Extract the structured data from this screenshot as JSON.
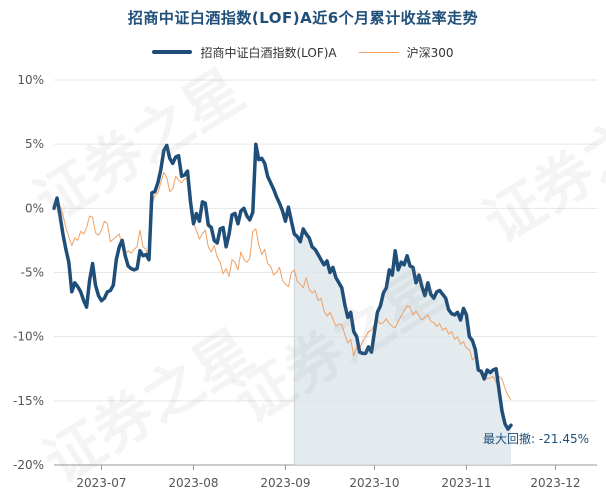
{
  "title": "招商中证白酒指数(LOF)A近6个月累计收益率走势",
  "colors": {
    "fund": "#1f4e79",
    "index": "#f0a062",
    "area": "#dbe4ea",
    "grid": "#e6e6e6",
    "axis_text": "#555555",
    "annotation": "#1f4e79"
  },
  "watermark_text": "证券之星",
  "chart_data": {
    "type": "line",
    "title": "招商中证白酒指数(LOF)A近6个月累计收益率走势",
    "xlabel": "",
    "ylabel": "",
    "ylim": [
      -20,
      10
    ],
    "y_ticks": [
      "10%",
      "5%",
      "0%",
      "-5%",
      "-10%",
      "-15%",
      "-20%"
    ],
    "y_tick_values": [
      10,
      5,
      0,
      -5,
      -10,
      -15,
      -20
    ],
    "x_ticks": [
      "2023-07",
      "2023-08",
      "2023-09",
      "2023-10",
      "2023-11",
      "2023-12"
    ],
    "x_tick_days": [
      16,
      47,
      78,
      108,
      139,
      169
    ],
    "x_range_days": [
      0,
      183
    ],
    "grid": "horizontal",
    "legend_position": "top-center",
    "annotation": "最大回撤: -21.45%",
    "drawdown_start_day": 81,
    "series": [
      {
        "name": "招商中证白酒指数(LOF)A",
        "style": "thick",
        "points": [
          [
            0,
            0
          ],
          [
            1,
            0.8
          ],
          [
            2,
            -0.5
          ],
          [
            3,
            -2
          ],
          [
            4,
            -3.2
          ],
          [
            5,
            -4.2
          ],
          [
            6,
            -6.5
          ],
          [
            7,
            -5.8
          ],
          [
            8,
            -6.1
          ],
          [
            9,
            -6.5
          ],
          [
            10,
            -7.2
          ],
          [
            11,
            -7.7
          ],
          [
            12,
            -5.6
          ],
          [
            13,
            -4.3
          ],
          [
            14,
            -6.0
          ],
          [
            15,
            -6.8
          ],
          [
            16,
            -7.2
          ],
          [
            17,
            -7.0
          ],
          [
            18,
            -6.5
          ],
          [
            19,
            -6.4
          ],
          [
            20,
            -6.0
          ],
          [
            21,
            -4.0
          ],
          [
            22,
            -3.0
          ],
          [
            23,
            -2.5
          ],
          [
            24,
            -3.7
          ],
          [
            25,
            -4.5
          ],
          [
            26,
            -4.7
          ],
          [
            27,
            -4.8
          ],
          [
            28,
            -4.7
          ],
          [
            29,
            -3.3
          ],
          [
            30,
            -3.7
          ],
          [
            31,
            -3.6
          ],
          [
            32,
            -4.0
          ],
          [
            33,
            1.2
          ],
          [
            34,
            1.3
          ],
          [
            35,
            2.0
          ],
          [
            36,
            3.0
          ],
          [
            37,
            4.5
          ],
          [
            38,
            4.9
          ],
          [
            39,
            3.9
          ],
          [
            40,
            3.5
          ],
          [
            41,
            4.0
          ],
          [
            42,
            4.1
          ],
          [
            43,
            2.5
          ],
          [
            44,
            2.6
          ],
          [
            45,
            2.9
          ],
          [
            46,
            0.5
          ],
          [
            47,
            -1.2
          ],
          [
            48,
            -0.4
          ],
          [
            49,
            -1.0
          ],
          [
            50,
            0.5
          ],
          [
            51,
            0.4
          ],
          [
            52,
            -1.3
          ],
          [
            53,
            -1.5
          ],
          [
            54,
            -2.5
          ],
          [
            55,
            -2.7
          ],
          [
            56,
            -1.6
          ],
          [
            57,
            -1.5
          ],
          [
            58,
            -3.0
          ],
          [
            59,
            -2.0
          ],
          [
            60,
            -0.5
          ],
          [
            61,
            -0.4
          ],
          [
            62,
            -1.2
          ],
          [
            63,
            -0.2
          ],
          [
            64,
            0.0
          ],
          [
            65,
            -0.6
          ],
          [
            66,
            -0.9
          ],
          [
            67,
            -0.3
          ],
          [
            68,
            5.0
          ],
          [
            69,
            3.8
          ],
          [
            70,
            3.9
          ],
          [
            71,
            3.5
          ],
          [
            72,
            2.5
          ],
          [
            73,
            2.0
          ],
          [
            74,
            1.5
          ],
          [
            75,
            0.9
          ],
          [
            76,
            0.4
          ],
          [
            77,
            -0.2
          ],
          [
            78,
            -1.0
          ],
          [
            79,
            0.1
          ],
          [
            80,
            -1.0
          ],
          [
            81,
            -2.0
          ],
          [
            82,
            -2.2
          ],
          [
            83,
            -2.6
          ],
          [
            84,
            -1.6
          ],
          [
            85,
            -2.0
          ],
          [
            86,
            -2.3
          ],
          [
            87,
            -3.0
          ],
          [
            88,
            -3.2
          ],
          [
            89,
            -3.6
          ],
          [
            90,
            -4.0
          ],
          [
            91,
            -4.4
          ],
          [
            92,
            -4.1
          ],
          [
            93,
            -5.0
          ],
          [
            94,
            -4.6
          ],
          [
            95,
            -5.4
          ],
          [
            96,
            -5.8
          ],
          [
            97,
            -6.2
          ],
          [
            98,
            -7.5
          ],
          [
            99,
            -8.5
          ],
          [
            100,
            -8.1
          ],
          [
            101,
            -9.6
          ],
          [
            102,
            -10.0
          ],
          [
            103,
            -11.2
          ],
          [
            104,
            -11.3
          ],
          [
            105,
            -11.3
          ],
          [
            106,
            -10.8
          ],
          [
            107,
            -11.2
          ],
          [
            108,
            -9.6
          ],
          [
            109,
            -8.1
          ],
          [
            110,
            -7.6
          ],
          [
            111,
            -6.6
          ],
          [
            112,
            -6.2
          ],
          [
            113,
            -4.8
          ],
          [
            114,
            -5.2
          ],
          [
            115,
            -3.3
          ],
          [
            116,
            -4.8
          ],
          [
            117,
            -4.2
          ],
          [
            118,
            -4.4
          ],
          [
            119,
            -3.7
          ],
          [
            120,
            -4.5
          ],
          [
            121,
            -4.6
          ],
          [
            122,
            -5.8
          ],
          [
            123,
            -5.2
          ],
          [
            124,
            -6.1
          ],
          [
            125,
            -6.8
          ],
          [
            126,
            -5.8
          ],
          [
            127,
            -6.7
          ],
          [
            128,
            -7.0
          ],
          [
            129,
            -6.5
          ],
          [
            130,
            -6.4
          ],
          [
            131,
            -6.7
          ],
          [
            132,
            -7.0
          ],
          [
            133,
            -7.9
          ],
          [
            134,
            -8.2
          ],
          [
            135,
            -8.3
          ],
          [
            136,
            -8.1
          ],
          [
            137,
            -8.7
          ],
          [
            138,
            -7.8
          ],
          [
            139,
            -8.3
          ],
          [
            140,
            -10.0
          ],
          [
            141,
            -10.3
          ],
          [
            142,
            -11.0
          ],
          [
            143,
            -12.6
          ],
          [
            144,
            -12.7
          ],
          [
            145,
            -13.3
          ],
          [
            146,
            -12.6
          ],
          [
            147,
            -12.8
          ],
          [
            148,
            -12.6
          ],
          [
            149,
            -12.5
          ],
          [
            150,
            -14.2
          ],
          [
            151,
            -15.8
          ],
          [
            152,
            -16.8
          ],
          [
            153,
            -17.2
          ],
          [
            154,
            -16.9
          ]
        ]
      },
      {
        "name": "沪深300",
        "style": "thin",
        "points": [
          [
            0,
            0
          ],
          [
            1,
            0.9
          ],
          [
            2,
            0.2
          ],
          [
            3,
            -0.5
          ],
          [
            4,
            -1.5
          ],
          [
            5,
            -2.2
          ],
          [
            6,
            -2.9
          ],
          [
            7,
            -2.3
          ],
          [
            8,
            -2.5
          ],
          [
            9,
            -1.8
          ],
          [
            10,
            -2.0
          ],
          [
            11,
            -1.5
          ],
          [
            12,
            -0.6
          ],
          [
            13,
            -0.7
          ],
          [
            14,
            -1.9
          ],
          [
            15,
            -2.1
          ],
          [
            16,
            -1.7
          ],
          [
            17,
            -1.0
          ],
          [
            18,
            -1.2
          ],
          [
            19,
            -2.6
          ],
          [
            20,
            -2.4
          ],
          [
            21,
            -2.2
          ],
          [
            22,
            -2.0
          ],
          [
            23,
            -3.0
          ],
          [
            24,
            -3.6
          ],
          [
            25,
            -3.3
          ],
          [
            26,
            -3.5
          ],
          [
            27,
            -3.2
          ],
          [
            28,
            -3.0
          ],
          [
            29,
            -1.7
          ],
          [
            30,
            -3.0
          ],
          [
            31,
            -3.2
          ],
          [
            32,
            -4.1
          ],
          [
            33,
            0.3
          ],
          [
            34,
            1.0
          ],
          [
            35,
            1.2
          ],
          [
            36,
            2.0
          ],
          [
            37,
            2.8
          ],
          [
            38,
            2.4
          ],
          [
            39,
            1.3
          ],
          [
            40,
            1.5
          ],
          [
            41,
            2.5
          ],
          [
            42,
            2.2
          ],
          [
            43,
            2.0
          ],
          [
            44,
            2.3
          ],
          [
            45,
            2.3
          ],
          [
            46,
            1.5
          ],
          [
            47,
            -1.2
          ],
          [
            48,
            -1.7
          ],
          [
            49,
            -2.4
          ],
          [
            50,
            -2.0
          ],
          [
            51,
            -1.7
          ],
          [
            52,
            -3.0
          ],
          [
            53,
            -3.4
          ],
          [
            54,
            -2.9
          ],
          [
            55,
            -3.8
          ],
          [
            56,
            -4.2
          ],
          [
            57,
            -5.1
          ],
          [
            58,
            -4.7
          ],
          [
            59,
            -5.3
          ],
          [
            60,
            -4.0
          ],
          [
            61,
            -4.2
          ],
          [
            62,
            -4.8
          ],
          [
            63,
            -3.4
          ],
          [
            64,
            -4.0
          ],
          [
            65,
            -4.2
          ],
          [
            66,
            -3.9
          ],
          [
            67,
            -1.8
          ],
          [
            68,
            -1.6
          ],
          [
            69,
            -2.8
          ],
          [
            70,
            -3.6
          ],
          [
            71,
            -3.2
          ],
          [
            72,
            -4.3
          ],
          [
            73,
            -4.5
          ],
          [
            74,
            -5.2
          ],
          [
            75,
            -5.0
          ],
          [
            76,
            -4.6
          ],
          [
            77,
            -5.6
          ],
          [
            78,
            -5.9
          ],
          [
            79,
            -6.1
          ],
          [
            80,
            -5.0
          ],
          [
            81,
            -4.8
          ],
          [
            82,
            -5.7
          ],
          [
            83,
            -5.9
          ],
          [
            84,
            -6.2
          ],
          [
            85,
            -5.4
          ],
          [
            86,
            -6.3
          ],
          [
            87,
            -6.6
          ],
          [
            88,
            -6.4
          ],
          [
            89,
            -7.2
          ],
          [
            90,
            -7.0
          ],
          [
            91,
            -8.0
          ],
          [
            92,
            -8.4
          ],
          [
            93,
            -8.1
          ],
          [
            94,
            -8.6
          ],
          [
            95,
            -9.2
          ],
          [
            96,
            -9.0
          ],
          [
            97,
            -9.1
          ],
          [
            98,
            -9.8
          ],
          [
            99,
            -10.5
          ],
          [
            100,
            -10.2
          ],
          [
            101,
            -11.5
          ],
          [
            102,
            -10.8
          ],
          [
            103,
            -10.9
          ],
          [
            104,
            -10.4
          ],
          [
            105,
            -10.0
          ],
          [
            106,
            -9.6
          ],
          [
            107,
            -9.5
          ],
          [
            108,
            -9.0
          ],
          [
            109,
            -8.7
          ],
          [
            110,
            -9.0
          ],
          [
            111,
            -8.9
          ],
          [
            112,
            -8.6
          ],
          [
            113,
            -9.0
          ],
          [
            114,
            -9.2
          ],
          [
            115,
            -9.3
          ],
          [
            116,
            -8.8
          ],
          [
            117,
            -8.4
          ],
          [
            118,
            -8.0
          ],
          [
            119,
            -7.6
          ],
          [
            120,
            -7.7
          ],
          [
            121,
            -8.3
          ],
          [
            122,
            -8.0
          ],
          [
            123,
            -8.4
          ],
          [
            124,
            -8.7
          ],
          [
            125,
            -8.5
          ],
          [
            126,
            -8.3
          ],
          [
            127,
            -8.8
          ],
          [
            128,
            -8.9
          ],
          [
            129,
            -9.2
          ],
          [
            130,
            -9.0
          ],
          [
            131,
            -9.5
          ],
          [
            132,
            -9.3
          ],
          [
            133,
            -9.8
          ],
          [
            134,
            -9.6
          ],
          [
            135,
            -10.2
          ],
          [
            136,
            -10.0
          ],
          [
            137,
            -10.6
          ],
          [
            138,
            -10.4
          ],
          [
            139,
            -10.9
          ],
          [
            140,
            -11.0
          ],
          [
            141,
            -11.8
          ],
          [
            142,
            -11.6
          ],
          [
            143,
            -12.6
          ],
          [
            144,
            -13.0
          ],
          [
            145,
            -12.9
          ],
          [
            146,
            -13.3
          ],
          [
            147,
            -13.2
          ],
          [
            148,
            -13.1
          ],
          [
            149,
            -13.6
          ],
          [
            150,
            -13.1
          ],
          [
            151,
            -13.3
          ],
          [
            152,
            -14.0
          ],
          [
            153,
            -14.6
          ],
          [
            154,
            -14.9
          ]
        ]
      }
    ]
  },
  "legend": {
    "fund_label": "招商中证白酒指数(LOF)A",
    "index_label": "沪深300"
  }
}
